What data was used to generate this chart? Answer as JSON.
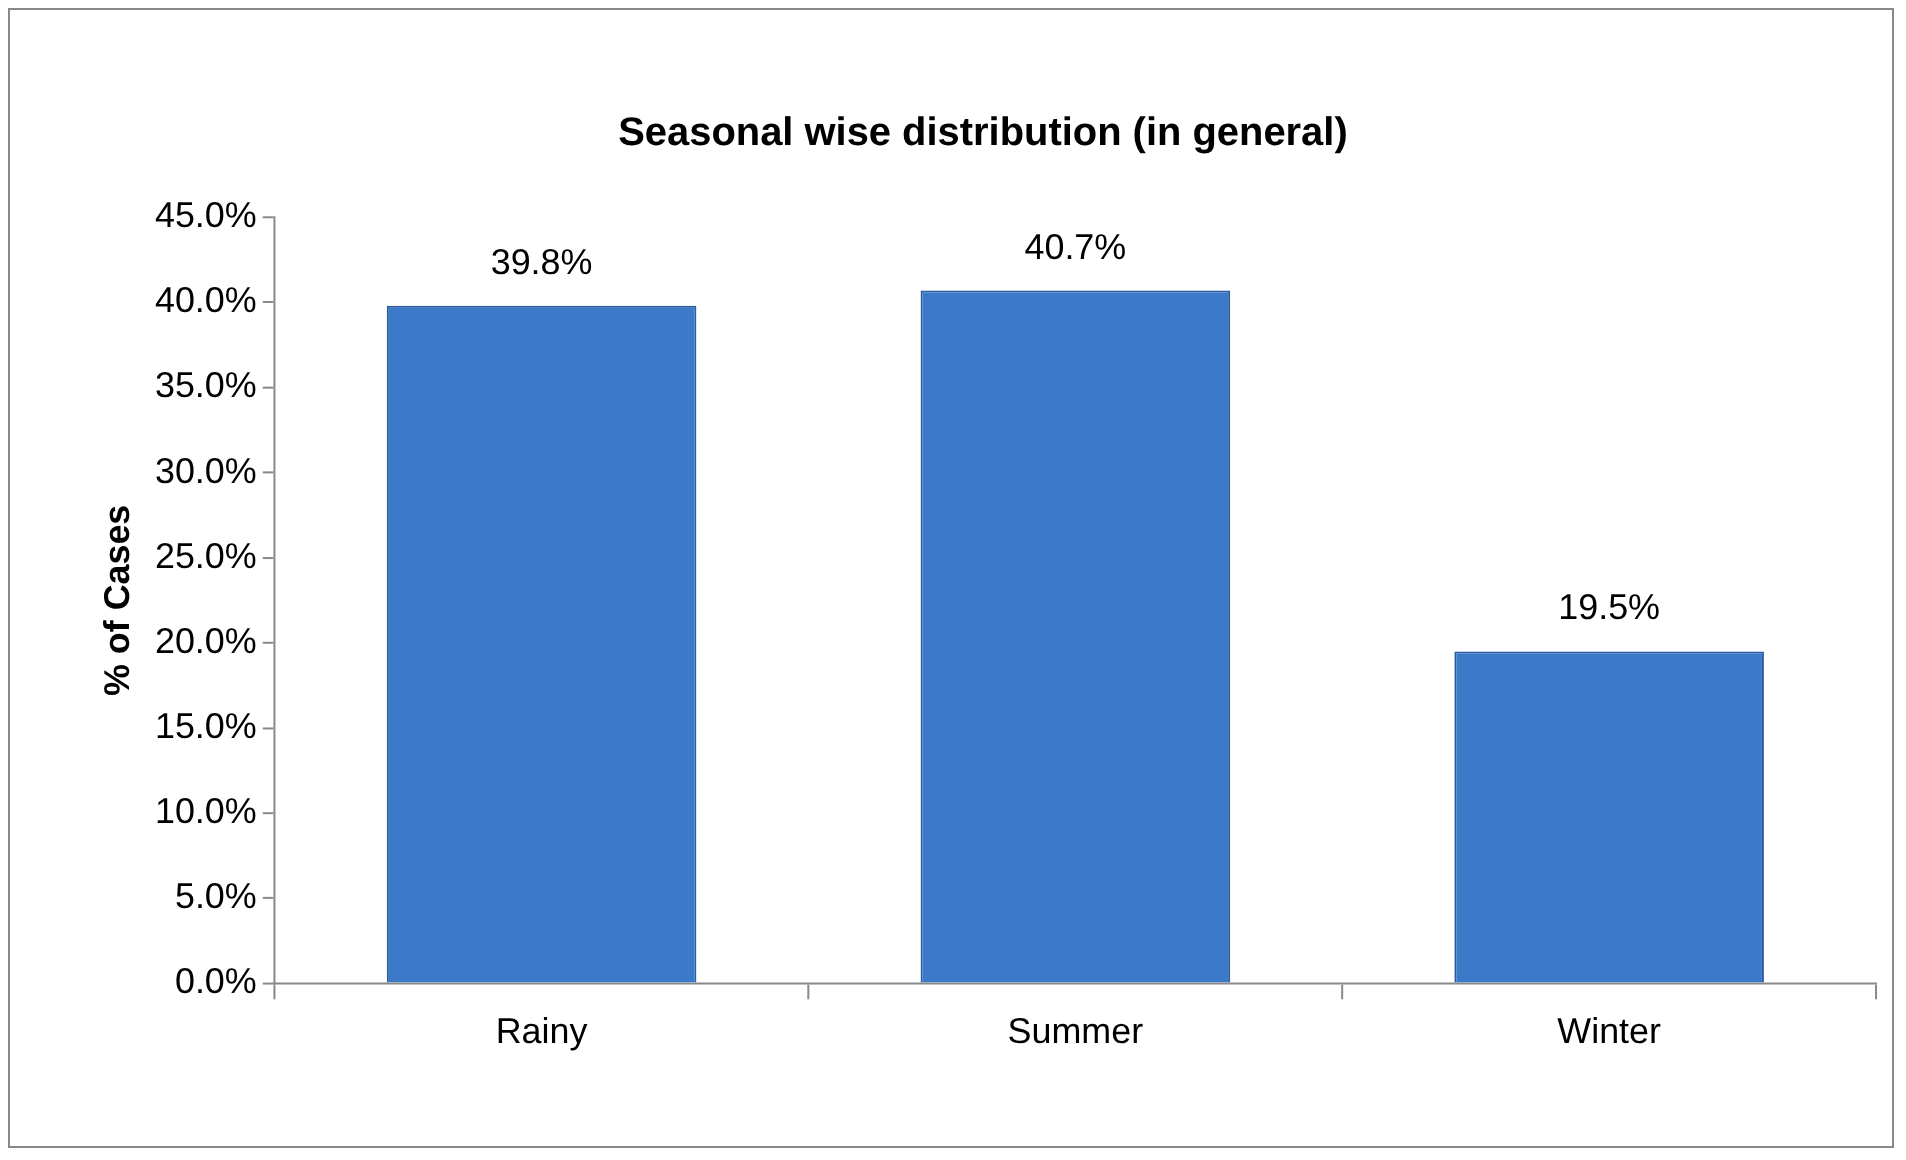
{
  "chart_data": {
    "type": "bar",
    "title": "Seasonal wise distribution (in general)",
    "ylabel": "% of Cases",
    "categories": [
      "Rainy",
      "Summer",
      "Winter"
    ],
    "values": [
      39.8,
      40.7,
      19.5
    ],
    "value_labels": [
      "39.8%",
      "40.7%",
      "19.5%"
    ],
    "color": "#3b79c9",
    "ylim": [
      0,
      45
    ],
    "yticks": [
      {
        "value": 0,
        "label": "0.0%"
      },
      {
        "value": 5,
        "label": "5.0%"
      },
      {
        "value": 10,
        "label": "10.0%"
      },
      {
        "value": 15,
        "label": "15.0%"
      },
      {
        "value": 20,
        "label": "20.0%"
      },
      {
        "value": 25,
        "label": "25.0%"
      },
      {
        "value": 30,
        "label": "30.0%"
      },
      {
        "value": 35,
        "label": "35.0%"
      },
      {
        "value": 40,
        "label": "40.0%"
      },
      {
        "value": 45,
        "label": "45.0%"
      }
    ],
    "grid": false,
    "legend": false
  }
}
